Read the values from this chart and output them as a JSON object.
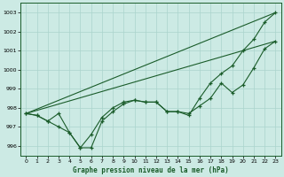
{
  "background_color": "#cceae4",
  "grid_color": "#aad4cc",
  "line_color": "#1a5c2a",
  "title": "Graphe pression niveau de la mer (hPa)",
  "xlim": [
    -0.5,
    23.5
  ],
  "ylim": [
    995.5,
    1003.5
  ],
  "yticks": [
    996,
    997,
    998,
    999,
    1000,
    1001,
    1002,
    1003
  ],
  "xticks": [
    0,
    1,
    2,
    3,
    4,
    5,
    6,
    7,
    8,
    9,
    10,
    11,
    12,
    13,
    14,
    15,
    16,
    17,
    18,
    19,
    20,
    21,
    22,
    23
  ],
  "line_dotted1": {
    "x": [
      0,
      23
    ],
    "y": [
      997.7,
      1003.0
    ]
  },
  "line_dotted2": {
    "x": [
      0,
      23
    ],
    "y": [
      997.7,
      1001.5
    ]
  },
  "line_main1": {
    "x": [
      0,
      1,
      2,
      3,
      4,
      5,
      6,
      7,
      8,
      9,
      10,
      11,
      12,
      13,
      14,
      15,
      16,
      17,
      18,
      19,
      20,
      21,
      22,
      23
    ],
    "y": [
      997.7,
      997.6,
      997.3,
      997.0,
      996.7,
      995.9,
      995.9,
      997.3,
      997.8,
      998.2,
      998.4,
      998.3,
      998.3,
      997.8,
      997.8,
      997.7,
      998.1,
      998.5,
      999.3,
      998.8,
      999.2,
      1000.1,
      1001.1,
      1001.5
    ]
  },
  "line_main2": {
    "x": [
      0,
      1,
      2,
      3,
      4,
      5,
      6,
      7,
      8,
      9,
      10,
      11,
      12,
      13,
      14,
      15,
      16,
      17,
      18,
      19,
      20,
      21,
      22,
      23
    ],
    "y": [
      997.7,
      997.6,
      997.3,
      997.7,
      996.7,
      995.9,
      996.6,
      997.5,
      998.0,
      998.3,
      998.4,
      998.3,
      998.3,
      997.8,
      997.8,
      997.6,
      998.5,
      999.3,
      999.8,
      1000.2,
      1001.0,
      1001.6,
      1002.5,
      1003.0
    ]
  }
}
